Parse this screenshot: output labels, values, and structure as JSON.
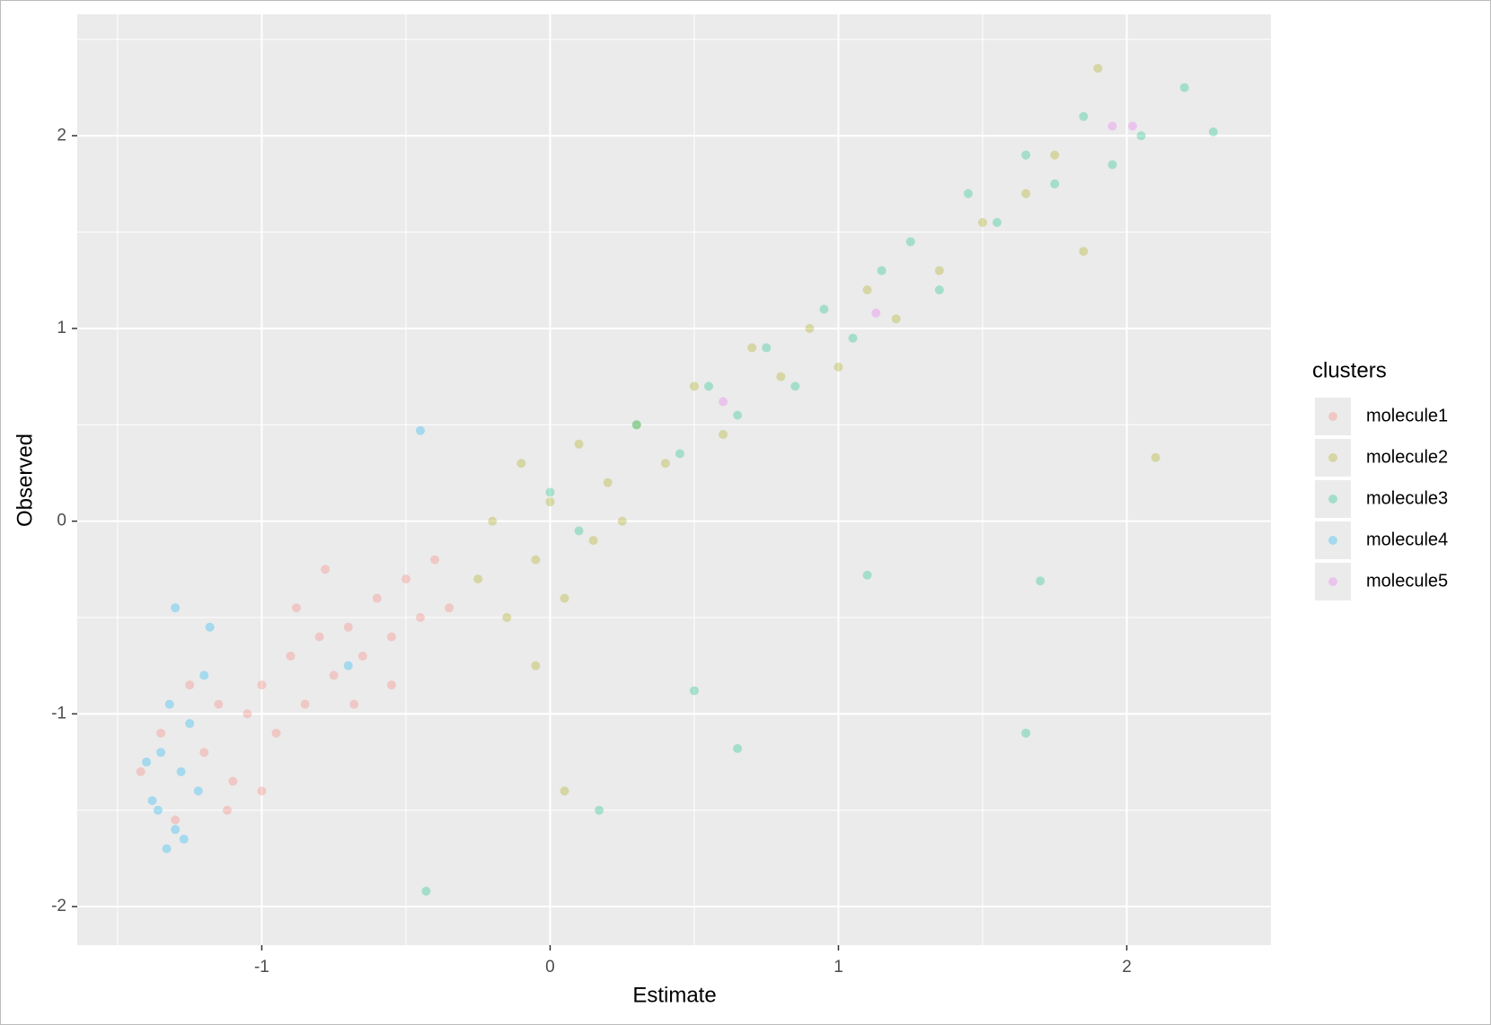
{
  "chart_data": {
    "type": "scatter",
    "x_label": "Estimate",
    "y_label": "Observed",
    "legend_title": "clusters",
    "xlim": [
      -1.64,
      2.5
    ],
    "ylim": [
      -2.2,
      2.63
    ],
    "xticks": [
      -1,
      0,
      1,
      2
    ],
    "yticks": [
      -2,
      -1,
      0,
      1,
      2
    ],
    "x_minor_grid": [
      -1.5,
      -0.5,
      0.5,
      1.5
    ],
    "y_minor_grid": [
      -1.5,
      -0.5,
      0.5,
      1.5,
      2.5
    ],
    "grid": true,
    "alpha": 0.3,
    "legend_position": "right",
    "series": [
      {
        "name": "molecule1",
        "color": "#F8766D",
        "x": [
          -1.42,
          -1.35,
          -1.3,
          -1.25,
          -1.2,
          -1.15,
          -1.1,
          -1.05,
          -1.0,
          -0.95,
          -0.9,
          -0.85,
          -0.8,
          -0.75,
          -0.7,
          -0.65,
          -0.6,
          -0.55,
          -0.5,
          -0.45,
          -0.4,
          -0.35,
          -1.12,
          -0.88,
          -0.68,
          -1.0,
          -0.78,
          -0.55
        ],
        "values": [
          -1.3,
          -1.1,
          -1.55,
          -0.85,
          -1.2,
          -0.95,
          -1.35,
          -1.0,
          -0.85,
          -1.1,
          -0.7,
          -0.95,
          -0.6,
          -0.8,
          -0.55,
          -0.7,
          -0.4,
          -0.6,
          -0.3,
          -0.5,
          -0.2,
          -0.45,
          -1.5,
          -0.45,
          -0.95,
          -1.4,
          -0.25,
          -0.85
        ]
      },
      {
        "name": "molecule2",
        "color": "#A3A500",
        "x": [
          -0.25,
          -0.2,
          -0.15,
          -0.1,
          -0.05,
          0,
          0.05,
          0.1,
          0.15,
          0.2,
          0.3,
          0.4,
          0.5,
          0.6,
          0.7,
          0.8,
          0.9,
          1.0,
          1.1,
          1.2,
          1.35,
          1.5,
          1.65,
          1.75,
          1.9,
          0.05,
          0.25,
          -0.05,
          2.1,
          1.85
        ],
        "values": [
          -0.3,
          0.0,
          -0.5,
          0.3,
          -0.2,
          0.1,
          -0.4,
          0.4,
          -0.1,
          0.2,
          0.5,
          0.3,
          0.7,
          0.45,
          0.9,
          0.75,
          1.0,
          0.8,
          1.2,
          1.05,
          1.3,
          1.55,
          1.7,
          1.9,
          2.35,
          -1.4,
          0.0,
          -0.75,
          0.33,
          1.4
        ]
      },
      {
        "name": "molecule3",
        "color": "#00BF7D",
        "x": [
          0,
          0.1,
          0.3,
          0.45,
          0.55,
          0.65,
          0.75,
          0.85,
          0.95,
          1.05,
          1.15,
          1.25,
          1.35,
          1.45,
          1.55,
          1.65,
          1.75,
          1.85,
          1.95,
          2.05,
          2.2,
          2.3,
          0.17,
          -0.43,
          1.7,
          1.65,
          1.1,
          0.5,
          0.65
        ],
        "values": [
          0.15,
          -0.05,
          0.5,
          0.35,
          0.7,
          0.55,
          0.9,
          0.7,
          1.1,
          0.95,
          1.3,
          1.45,
          1.2,
          1.7,
          1.55,
          1.9,
          1.75,
          2.1,
          1.85,
          2.0,
          2.25,
          2.02,
          -1.5,
          -1.92,
          -0.31,
          -1.1,
          -0.28,
          -0.88,
          -1.18
        ]
      },
      {
        "name": "molecule4",
        "color": "#00B0F6",
        "x": [
          -1.38,
          -1.35,
          -1.32,
          -1.3,
          -1.28,
          -1.25,
          -1.22,
          -1.2,
          -1.33,
          -1.27,
          -1.36,
          -1.3,
          -1.4,
          -0.7,
          -0.45,
          -1.18
        ],
        "values": [
          -1.45,
          -1.2,
          -0.95,
          -1.6,
          -1.3,
          -1.05,
          -1.4,
          -0.8,
          -1.7,
          -1.65,
          -1.5,
          -0.45,
          -1.25,
          -0.75,
          0.47,
          -0.55
        ]
      },
      {
        "name": "molecule5",
        "color": "#E76BF3",
        "x": [
          0.6,
          1.13,
          1.95,
          2.02
        ],
        "values": [
          0.62,
          1.08,
          2.05,
          2.05
        ]
      }
    ]
  }
}
